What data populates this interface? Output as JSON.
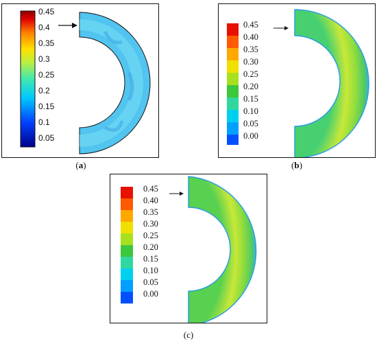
{
  "panels": [
    {
      "id": "a",
      "caption_letter": "a",
      "colorbar_ticks": [
        "0.45",
        "0.4",
        "0.35",
        "0.3",
        "0.25",
        "0.2",
        "0.15",
        "0.1",
        "0.05"
      ],
      "colorbar_style": "continuous"
    },
    {
      "id": "b",
      "caption_letter": "b",
      "colorbar_ticks": [
        "0.45",
        "0.40",
        "0.35",
        "0.30",
        "0.25",
        "0.20",
        "0.15",
        "0.10",
        "0.05",
        "0.00"
      ],
      "colorbar_style": "banded"
    },
    {
      "id": "c",
      "caption_letter": "c",
      "colorbar_ticks": [
        "0.45",
        "0.40",
        "0.35",
        "0.30",
        "0.25",
        "0.20",
        "0.15",
        "0.10",
        "0.05",
        "0.00"
      ],
      "colorbar_style": "banded"
    }
  ],
  "colors": {
    "scale": [
      "#0000a8",
      "#0050ff",
      "#00b4ff",
      "#22e0c8",
      "#3ed04a",
      "#a8e22a",
      "#f2e400",
      "#ffa000",
      "#ff3a00",
      "#c80000"
    ],
    "outline": "#111111"
  }
}
